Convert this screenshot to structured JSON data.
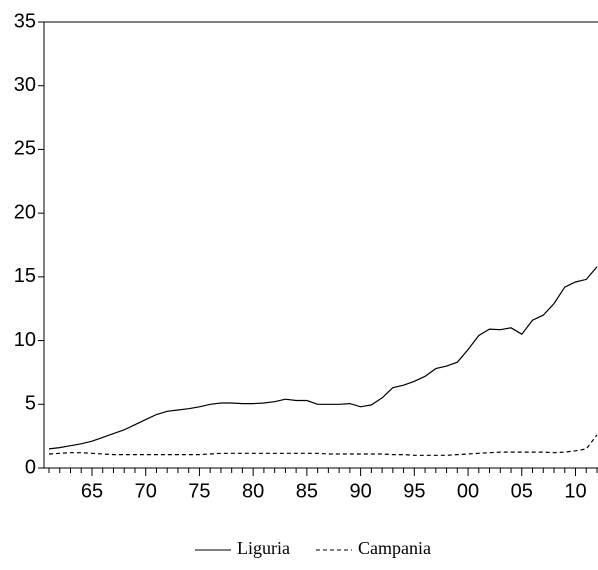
{
  "chart_data": {
    "type": "line",
    "categories": [
      null,
      null,
      null,
      null,
      "65",
      null,
      null,
      null,
      null,
      "70",
      null,
      null,
      null,
      null,
      "75",
      null,
      null,
      null,
      null,
      "80",
      null,
      null,
      null,
      null,
      "85",
      null,
      null,
      null,
      null,
      "90",
      null,
      null,
      null,
      null,
      "95",
      null,
      null,
      null,
      null,
      "00",
      null,
      null,
      null,
      null,
      "05",
      null,
      null,
      null,
      null,
      "10",
      null,
      null
    ],
    "series": [
      {
        "name": "Liguria",
        "color": "#000000",
        "dash": "solid",
        "values": [
          1.5,
          1.6,
          1.75,
          1.9,
          2.1,
          2.4,
          2.7,
          3.0,
          3.4,
          3.8,
          4.2,
          4.45,
          4.55,
          4.65,
          4.8,
          5.0,
          5.1,
          5.1,
          5.05,
          5.05,
          5.1,
          5.2,
          5.4,
          5.3,
          5.3,
          5.0,
          5.0,
          5.0,
          5.05,
          4.8,
          4.95,
          5.5,
          6.3,
          6.5,
          6.8,
          7.2,
          7.8,
          8.0,
          8.3,
          9.3,
          10.4,
          10.9,
          10.85,
          11.0,
          10.5,
          11.6,
          12.0,
          12.9,
          14.2,
          14.6,
          14.8,
          15.8
        ]
      },
      {
        "name": "Campania",
        "color": "#000000",
        "dash": "dashed",
        "values": [
          1.1,
          1.15,
          1.2,
          1.2,
          1.15,
          1.1,
          1.05,
          1.05,
          1.05,
          1.05,
          1.05,
          1.05,
          1.05,
          1.05,
          1.05,
          1.1,
          1.15,
          1.15,
          1.15,
          1.15,
          1.15,
          1.15,
          1.15,
          1.15,
          1.15,
          1.15,
          1.1,
          1.1,
          1.1,
          1.1,
          1.1,
          1.1,
          1.05,
          1.05,
          1.0,
          1.0,
          1.0,
          1.0,
          1.05,
          1.1,
          1.15,
          1.2,
          1.25,
          1.25,
          1.25,
          1.25,
          1.25,
          1.2,
          1.25,
          1.35,
          1.5,
          2.6
        ]
      }
    ],
    "ylim": [
      0,
      35
    ],
    "yticks": [
      0,
      5,
      10,
      15,
      20,
      25,
      30,
      35
    ],
    "legend": "bottom"
  }
}
